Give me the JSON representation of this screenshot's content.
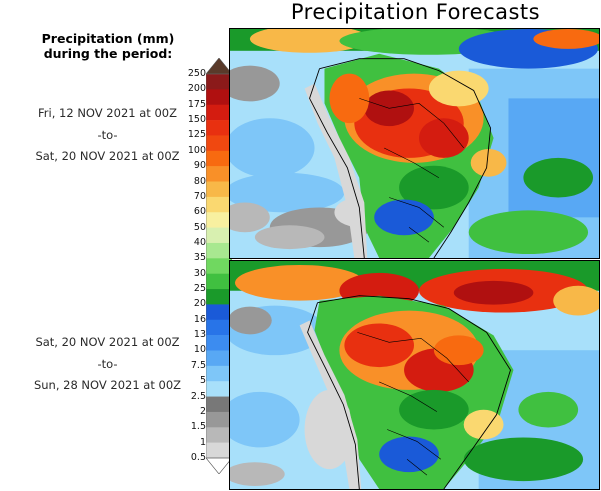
{
  "title": "Precipitation Forecasts",
  "legend": {
    "title_line1": "Precipitation (mm)",
    "title_line2": "during the period:",
    "levels": [
      "250",
      "200",
      "175",
      "150",
      "125",
      "100",
      "90",
      "80",
      "70",
      "60",
      "50",
      "40",
      "35",
      "30",
      "25",
      "20",
      "16",
      "13",
      "10",
      "7.5",
      "5",
      "2.5",
      "2",
      "1.5",
      "1",
      "0.5"
    ],
    "colors": [
      "#5a3a2a",
      "#8b1a1a",
      "#b01010",
      "#d41c10",
      "#e83010",
      "#f04810",
      "#f86a10",
      "#f99028",
      "#f8b848",
      "#fad870",
      "#f8f0a0",
      "#d8f0b0",
      "#a8e890",
      "#70d860",
      "#40c040",
      "#1a9a2a",
      "#1a5ad8",
      "#2874e8",
      "#3c8cf0",
      "#58a8f4",
      "#7ec6f8",
      "#a8e0fa",
      "#787878",
      "#989898",
      "#b8b8b8",
      "#d8d8d8",
      "#ffffff"
    ]
  },
  "period1": {
    "start": "Fri, 12 NOV 2021 at 00Z",
    "separator": "-to-",
    "end": "Sat, 20 NOV 2021 at 00Z"
  },
  "period2": {
    "start": "Sat, 20 NOV 2021 at 00Z",
    "separator": "-to-",
    "end": "Sun, 28 NOV 2021 at 00Z"
  }
}
